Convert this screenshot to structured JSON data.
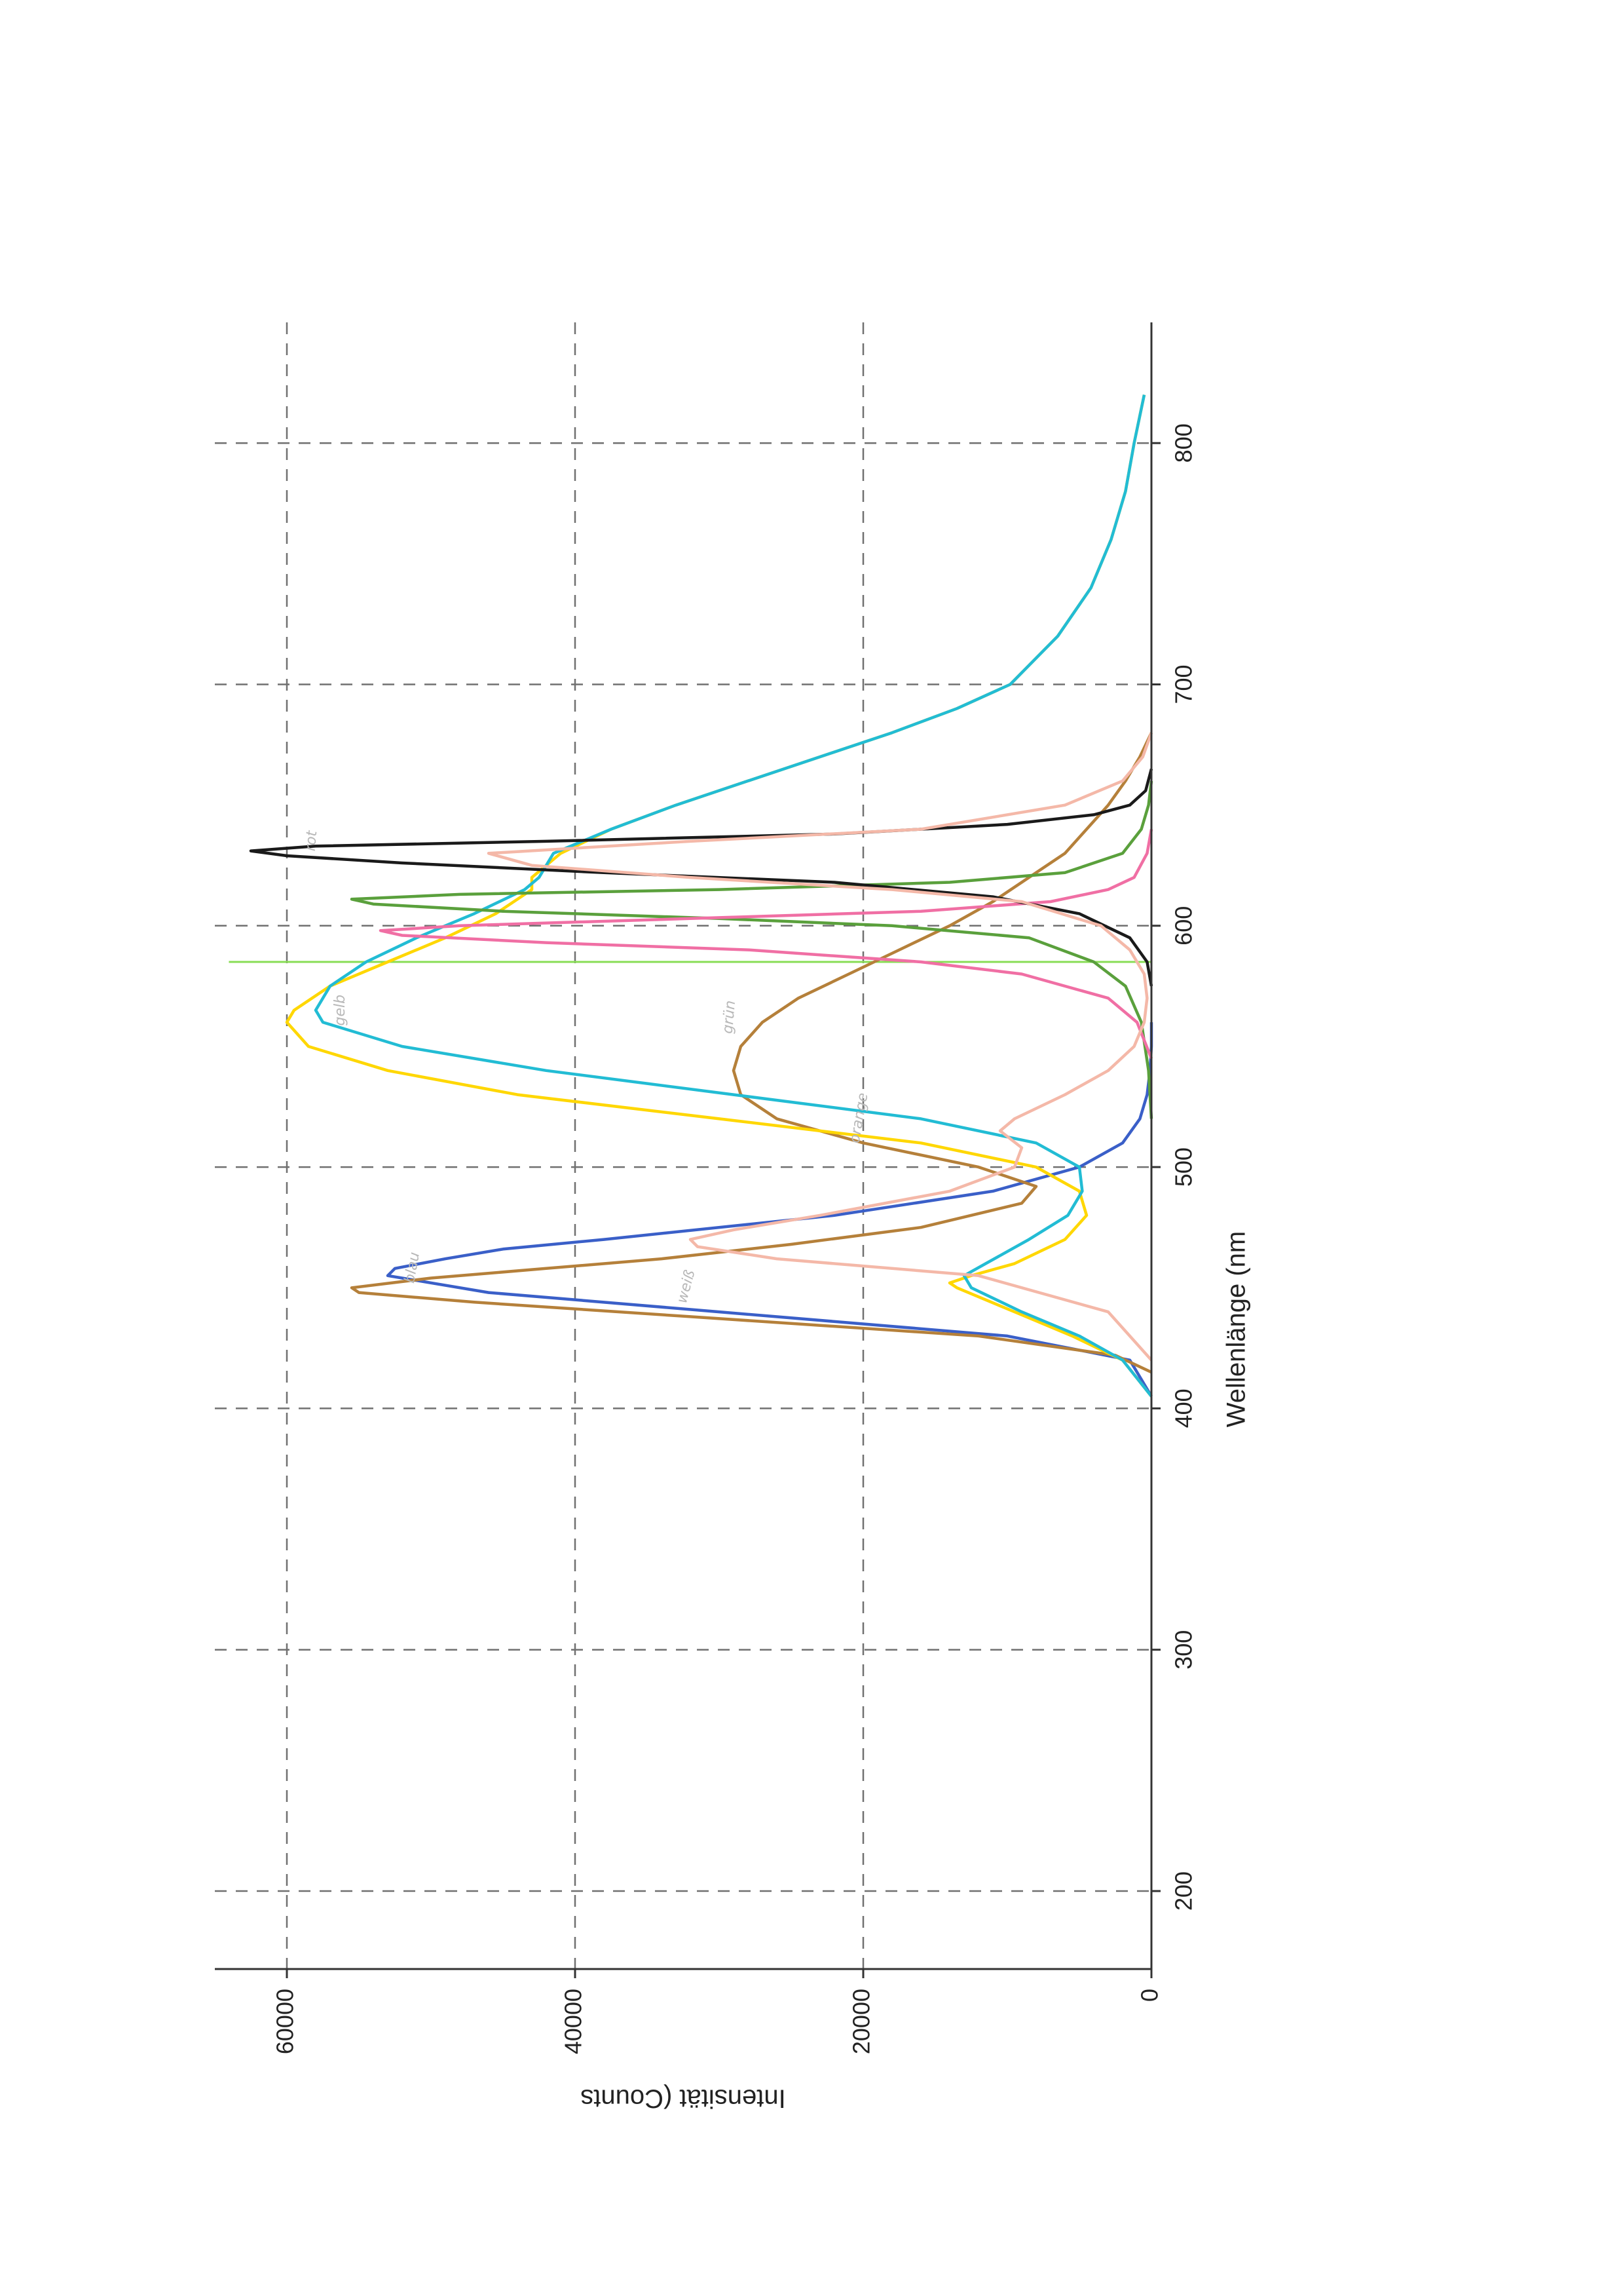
{
  "chart_data": {
    "type": "line",
    "xlabel": "Wellenlänge (nm",
    "ylabel": "Intensität (Counts",
    "xlim": [
      180,
      880
    ],
    "ylim": [
      0,
      65000
    ],
    "x_ticks": [
      200,
      300,
      400,
      500,
      600,
      700,
      800
    ],
    "y_ticks": [
      0,
      20000,
      40000,
      60000
    ],
    "grid": true,
    "legend": "none",
    "annotations": [
      "blau",
      "weiß",
      "gelb",
      "grün",
      "orange",
      "rot"
    ],
    "reference_line": {
      "x": 585,
      "color": "#88dd55"
    },
    "series": [
      {
        "color": "#3a5fc8",
        "x": [
          405,
          420,
          430,
          440,
          448,
          455,
          458,
          462,
          466,
          470,
          480,
          490,
          500,
          510,
          520,
          530,
          540,
          550,
          560
        ],
        "y": [
          0,
          1500,
          10000,
          30000,
          46000,
          53000,
          52500,
          49000,
          45000,
          38000,
          22000,
          11000,
          5000,
          2000,
          800,
          300,
          100,
          0,
          0
        ]
      },
      {
        "color": "#b5803a",
        "x": [
          415,
          422,
          430,
          438,
          444,
          448,
          450,
          454,
          458,
          462,
          468,
          475,
          485,
          492,
          500,
          510,
          520,
          530,
          540,
          550,
          560,
          570,
          580,
          590,
          600,
          610,
          620,
          630,
          640,
          650,
          660,
          670,
          680
        ],
        "y": [
          0,
          2500,
          12000,
          32000,
          47000,
          55000,
          55500,
          50000,
          42000,
          34000,
          25000,
          16000,
          9000,
          8000,
          12000,
          20000,
          26000,
          28500,
          29000,
          28500,
          27000,
          24500,
          21000,
          17500,
          14000,
          11000,
          8500,
          6000,
          4500,
          3000,
          1800,
          800,
          0
        ]
      },
      {
        "color": "#ffd700",
        "x": [
          405,
          420,
          430,
          440,
          450,
          452,
          455,
          460,
          470,
          480,
          490,
          500,
          510,
          520,
          530,
          540,
          550,
          560,
          565,
          575,
          585,
          595,
          605,
          615,
          620,
          630,
          640,
          650,
          660,
          670,
          680,
          690,
          700,
          720,
          740,
          760,
          780,
          800,
          820
        ],
        "y": [
          0,
          2000,
          5500,
          9500,
          13500,
          14000,
          12500,
          9500,
          6000,
          4500,
          5000,
          8000,
          16000,
          30000,
          44000,
          53000,
          58500,
          60000,
          59500,
          57000,
          53000,
          49000,
          45500,
          43000,
          43000,
          41000,
          37500,
          33000,
          28000,
          23000,
          18000,
          13500,
          9800,
          6500,
          4200,
          2800,
          1800,
          1200,
          500
        ]
      },
      {
        "color": "#22bcd4",
        "x": [
          405,
          420,
          430,
          440,
          450,
          455,
          460,
          470,
          480,
          490,
          500,
          510,
          520,
          530,
          540,
          550,
          560,
          565,
          575,
          585,
          595,
          605,
          615,
          620,
          630,
          640,
          650,
          660,
          670,
          680,
          690,
          700,
          720,
          740,
          760,
          780,
          800,
          820
        ],
        "y": [
          0,
          2000,
          5000,
          9000,
          12500,
          13000,
          11500,
          8500,
          5800,
          4800,
          5000,
          8000,
          16000,
          29000,
          42000,
          52000,
          57500,
          58000,
          57000,
          54500,
          51000,
          47000,
          43500,
          42500,
          41500,
          37500,
          33000,
          28000,
          23000,
          18000,
          13500,
          9800,
          6500,
          4200,
          2800,
          1800,
          1200,
          500
        ]
      },
      {
        "color": "#5aa03c",
        "x": [
          520,
          540,
          560,
          575,
          585,
          595,
          600,
          603,
          606,
          609,
          611,
          613,
          615,
          618,
          622,
          630,
          640,
          650,
          660
        ],
        "y": [
          0,
          200,
          700,
          1800,
          4000,
          8500,
          18000,
          30000,
          45000,
          54000,
          55500,
          48000,
          30000,
          14000,
          6000,
          2000,
          700,
          200,
          0
        ]
      },
      {
        "color": "#f06fa4",
        "x": [
          545,
          560,
          570,
          580,
          585,
          590,
          593,
          596,
          598,
          600,
          603,
          606,
          610,
          615,
          620,
          630,
          640
        ],
        "y": [
          0,
          1000,
          3000,
          9000,
          16000,
          28000,
          42000,
          52000,
          53500,
          48000,
          32000,
          16000,
          7000,
          3000,
          1200,
          300,
          0
        ]
      },
      {
        "color": "#1a1a1a",
        "x": [
          575,
          585,
          595,
          605,
          612,
          618,
          622,
          626,
          629,
          631,
          633,
          635,
          638,
          642,
          646,
          650,
          656,
          665
        ],
        "y": [
          0,
          300,
          1500,
          5000,
          11000,
          22000,
          38000,
          52000,
          60000,
          62500,
          58000,
          42000,
          22000,
          10000,
          4000,
          1500,
          400,
          0
        ]
      },
      {
        "color": "#f4b8a8",
        "x": [
          420,
          440,
          455,
          462,
          467,
          470,
          474,
          480,
          490,
          500,
          508,
          515,
          520,
          530,
          540,
          550,
          560,
          570,
          580,
          590,
          600,
          610,
          615,
          620,
          625,
          630,
          635,
          640,
          650,
          660,
          670,
          680
        ],
        "y": [
          0,
          3000,
          12000,
          26000,
          31500,
          32000,
          29000,
          23000,
          14000,
          9500,
          9000,
          10500,
          9500,
          6000,
          3000,
          1200,
          500,
          300,
          500,
          1500,
          3500,
          9000,
          18000,
          32000,
          43000,
          46000,
          32000,
          16000,
          6000,
          2000,
          600,
          0
        ]
      }
    ]
  }
}
